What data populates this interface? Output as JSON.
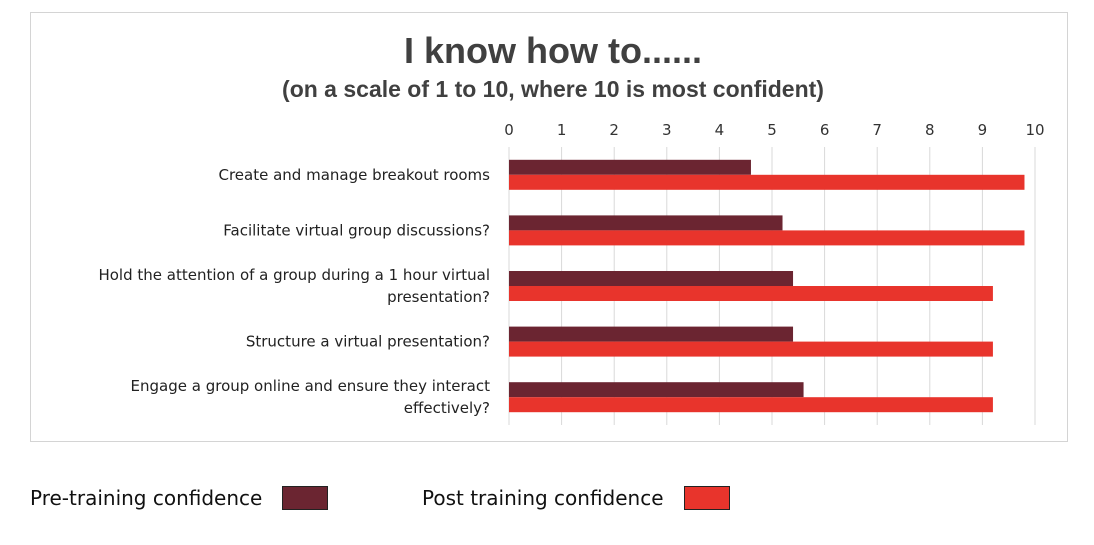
{
  "chart_data": {
    "type": "bar",
    "orientation": "horizontal",
    "title": "I know how to......",
    "subtitle": "(on a scale of 1 to 10, where 10 is most confident)",
    "categories": [
      [
        "Create and manage breakout rooms"
      ],
      [
        "Facilitate virtual group discussions?"
      ],
      [
        "Hold the attention of a group during a 1 hour virtual",
        "presentation?"
      ],
      [
        "Structure a virtual presentation?"
      ],
      [
        "Engage a group online and ensure they interact",
        "effectively?"
      ]
    ],
    "series": [
      {
        "name": "Pre-training confidence",
        "color": "#6b2531",
        "values": [
          4.6,
          5.2,
          5.4,
          5.4,
          5.6
        ]
      },
      {
        "name": "Post training confidence",
        "color": "#e8342c",
        "values": [
          9.8,
          9.8,
          9.2,
          9.2,
          9.2
        ]
      }
    ],
    "xlim": [
      0,
      10
    ],
    "ticks": [
      "0",
      "1",
      "2",
      "3",
      "4",
      "5",
      "6",
      "7",
      "8",
      "9",
      "10"
    ],
    "grid": true,
    "axis_position": "top",
    "legend_position": "bottom"
  }
}
